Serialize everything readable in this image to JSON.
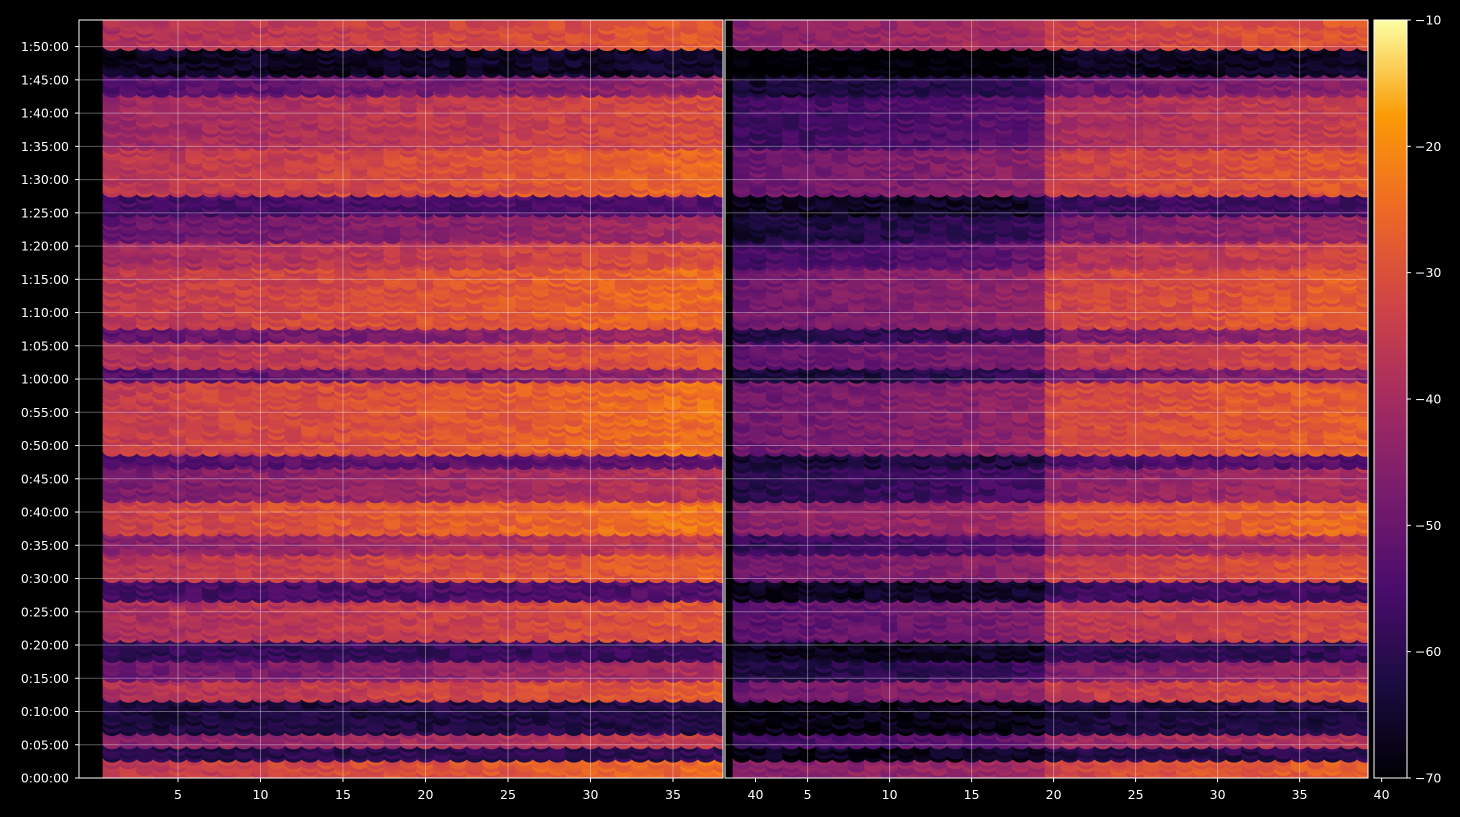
{
  "chart_data": {
    "type": "heatmap",
    "title": "",
    "panels": [
      {
        "xlabel": "",
        "ylabel": "",
        "xlim": [
          1,
          40
        ],
        "x_ticks": [
          "5",
          "10",
          "15",
          "20",
          "25",
          "30",
          "35",
          "40"
        ],
        "x_tick_values": [
          5,
          10,
          15,
          20,
          25,
          30,
          35,
          40
        ]
      },
      {
        "xlabel": "",
        "ylabel": "",
        "xlim": [
          1,
          40
        ],
        "x_ticks": [
          "5",
          "10",
          "15",
          "20",
          "25",
          "30",
          "35",
          "40"
        ],
        "x_tick_values": [
          5,
          10,
          15,
          20,
          25,
          30,
          35,
          40
        ]
      }
    ],
    "y_axis": {
      "unit": "time",
      "ylim_seconds": [
        0,
        6840
      ],
      "tick_labels": [
        "0:00:00",
        "0:05:00",
        "0:10:00",
        "0:15:00",
        "0:20:00",
        "0:25:00",
        "0:30:00",
        "0:35:00",
        "0:40:00",
        "0:45:00",
        "0:50:00",
        "0:55:00",
        "1:00:00",
        "1:05:00",
        "1:10:00",
        "1:15:00",
        "1:20:00",
        "1:25:00",
        "1:30:00",
        "1:35:00",
        "1:40:00",
        "1:45:00",
        "1:50:00"
      ],
      "tick_seconds": [
        0,
        300,
        600,
        900,
        1200,
        1500,
        1800,
        2100,
        2400,
        2700,
        3000,
        3300,
        3600,
        3900,
        4200,
        4500,
        4800,
        5100,
        5400,
        5700,
        6000,
        6300,
        6600
      ]
    },
    "grid": true,
    "colormap": "inferno",
    "colorbar": {
      "range": [
        -70,
        -10
      ],
      "tick_labels": [
        "−10",
        "−20",
        "−30",
        "−40",
        "−50",
        "−60",
        "−70"
      ],
      "tick_values": [
        -10,
        -20,
        -30,
        -40,
        -50,
        -60,
        -70
      ]
    },
    "approximate_levels": {
      "note_rows": "typical value per time band (seconds start/end, value in colorbar units), left panel then right panel offset",
      "bands": [
        {
          "t": [
            0,
            180
          ],
          "left": -30,
          "right_offset": -8
        },
        {
          "t": [
            180,
            300
          ],
          "left": -60,
          "right_offset": -5
        },
        {
          "t": [
            300,
            420
          ],
          "left": -40,
          "right_offset": -8
        },
        {
          "t": [
            420,
            720
          ],
          "left": -62,
          "right_offset": -4
        },
        {
          "t": [
            720,
            900
          ],
          "left": -33,
          "right_offset": -8
        },
        {
          "t": [
            900,
            1080
          ],
          "left": -44,
          "right_offset": -10
        },
        {
          "t": [
            1080,
            1260
          ],
          "left": -58,
          "right_offset": -6
        },
        {
          "t": [
            1260,
            1620
          ],
          "left": -34,
          "right_offset": -10
        },
        {
          "t": [
            1620,
            1800
          ],
          "left": -55,
          "right_offset": -8
        },
        {
          "t": [
            1800,
            2040
          ],
          "left": -32,
          "right_offset": -9
        },
        {
          "t": [
            2040,
            2220
          ],
          "left": -40,
          "right_offset": -10
        },
        {
          "t": [
            2220,
            2520
          ],
          "left": -28,
          "right_offset": -9
        },
        {
          "t": [
            2520,
            2820
          ],
          "left": -42,
          "right_offset": -10
        },
        {
          "t": [
            2820,
            2940
          ],
          "left": -52,
          "right_offset": -8
        },
        {
          "t": [
            2940,
            3600
          ],
          "left": -29,
          "right_offset": -11
        },
        {
          "t": [
            3600,
            3720
          ],
          "left": -48,
          "right_offset": -8
        },
        {
          "t": [
            3720,
            3960
          ],
          "left": -33,
          "right_offset": -10
        },
        {
          "t": [
            3960,
            4080
          ],
          "left": -46,
          "right_offset": -8
        },
        {
          "t": [
            4080,
            4620
          ],
          "left": -30,
          "right_offset": -10
        },
        {
          "t": [
            4620,
            4860
          ],
          "left": -35,
          "right_offset": -12
        },
        {
          "t": [
            4860,
            5100
          ],
          "left": -45,
          "right_offset": -10
        },
        {
          "t": [
            5100,
            5280
          ],
          "left": -55,
          "right_offset": -8
        },
        {
          "t": [
            5280,
            5700
          ],
          "left": -31,
          "right_offset": -10
        },
        {
          "t": [
            5700,
            6180
          ],
          "left": -36,
          "right_offset": -12
        },
        {
          "t": [
            6180,
            6360
          ],
          "left": -48,
          "right_offset": -8
        },
        {
          "t": [
            6360,
            6600
          ],
          "left": -66,
          "right_offset": -3
        },
        {
          "t": [
            6600,
            6840
          ],
          "left": -33,
          "right_offset": -5
        }
      ],
      "x_trend_per_unit": 0.3
    }
  }
}
